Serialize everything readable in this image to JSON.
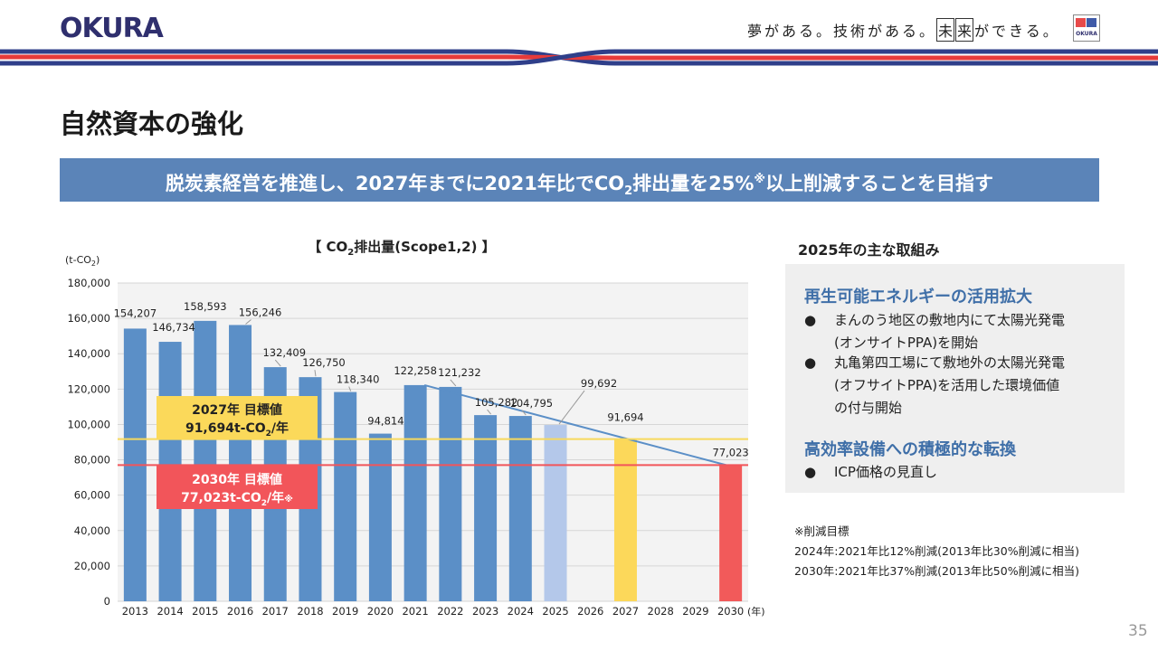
{
  "header": {
    "logo_text": "OKURA",
    "tagline_prefix": "夢がある。技術がある。",
    "tagline_box1": "未",
    "tagline_box2": "来",
    "tagline_suffix": "ができる。",
    "mini_logo_text": "OKURA"
  },
  "page_title": "自然資本の強化",
  "banner": {
    "text_part1": "脱炭素経営を推進し、2027年までに2021年比でCO",
    "text_sub": "2",
    "text_part2": "排出量を25%",
    "text_sup": "※",
    "text_part3": "以上削減することを目指す"
  },
  "chart_data": {
    "type": "bar",
    "title_prefix": "【 CO",
    "title_sub": "2",
    "title_suffix": "排出量(Scope1,2) 】",
    "ylabel_prefix": "(t-CO",
    "ylabel_sub": "2",
    "ylabel_suffix": ")",
    "xlabel_suffix": "(年)",
    "ylim": [
      0,
      180000
    ],
    "yticks": [
      0,
      20000,
      40000,
      60000,
      80000,
      100000,
      120000,
      140000,
      160000,
      180000
    ],
    "ytick_labels": [
      "0",
      "20,000",
      "40,000",
      "60,000",
      "80,000",
      "100,000",
      "120,000",
      "140,000",
      "160,000",
      "180,000"
    ],
    "categories": [
      "2013",
      "2014",
      "2015",
      "2016",
      "2017",
      "2018",
      "2019",
      "2020",
      "2021",
      "2022",
      "2023",
      "2024",
      "2025",
      "2026",
      "2027",
      "2028",
      "2029",
      "2030"
    ],
    "values": [
      154207,
      146734,
      158593,
      156246,
      132409,
      126750,
      118340,
      94814,
      122258,
      121232,
      105282,
      104795,
      99692,
      null,
      91694,
      null,
      null,
      77023
    ],
    "value_labels": [
      "154,207",
      "146,734",
      "158,593",
      "156,246",
      "132,409",
      "126,750",
      "118,340",
      "94,814",
      "122,258",
      "121,232",
      "105,282",
      "104,795",
      "99,692",
      "",
      "91,694",
      "",
      "",
      "77,023"
    ],
    "bar_colors": [
      "#5b8fc7",
      "#5b8fc7",
      "#5b8fc7",
      "#5b8fc7",
      "#5b8fc7",
      "#5b8fc7",
      "#5b8fc7",
      "#5b8fc7",
      "#5b8fc7",
      "#5b8fc7",
      "#5b8fc7",
      "#5b8fc7",
      "#b4c8ea",
      "",
      "#fcd85a",
      "",
      "",
      "#f25a5a"
    ],
    "trend_line": {
      "from": "2021",
      "to": "2030",
      "start_value": 122258,
      "end_value": 77023,
      "color": "#5b8fc7"
    },
    "target_lines": [
      {
        "name": "2027",
        "value": 91694,
        "color": "#f7d95c",
        "label_line1": "2027年 目標値",
        "label_line2_prefix": "91,694t-CO",
        "label_line2_sub": "2",
        "label_line2_suffix": "/年",
        "label_line2_mark": "",
        "box_color": "#fbd95a",
        "text_color": "#222222"
      },
      {
        "name": "2030",
        "value": 77023,
        "color": "#f2555a",
        "label_line1": "2030年 目標値",
        "label_line2_prefix": "77,023t-CO",
        "label_line2_sub": "2",
        "label_line2_suffix": "/年",
        "label_line2_mark": "※",
        "box_color": "#f2555a",
        "text_color": "#ffffff"
      }
    ]
  },
  "side": {
    "title": "2025年の主な取組み",
    "sections": [
      {
        "title": "再生可能エネルギーの活用拡大",
        "bullets": [
          {
            "line1": "まんのう地区の敷地内にて太陽光発電",
            "line2": "(オンサイトPPA)を開始",
            "line3": ""
          },
          {
            "line1": "丸亀第四工場にて敷地外の太陽光発電",
            "line2": "(オフサイトPPA)を活用した環境価値",
            "line3": "の付与開始"
          }
        ]
      },
      {
        "title": "高効率設備への積極的な転換",
        "bullets": [
          {
            "line1": "ICP価格の見直し",
            "line2": "",
            "line3": ""
          }
        ]
      }
    ],
    "bullet_symbol": "●"
  },
  "notes": {
    "title": "※削減目標",
    "line1": "2024年:2021年比12%削減(2013年比30%削減に相当)",
    "line2": "2030年:2021年比37%削減(2013年比50%削減に相当)"
  },
  "page_number": "35"
}
